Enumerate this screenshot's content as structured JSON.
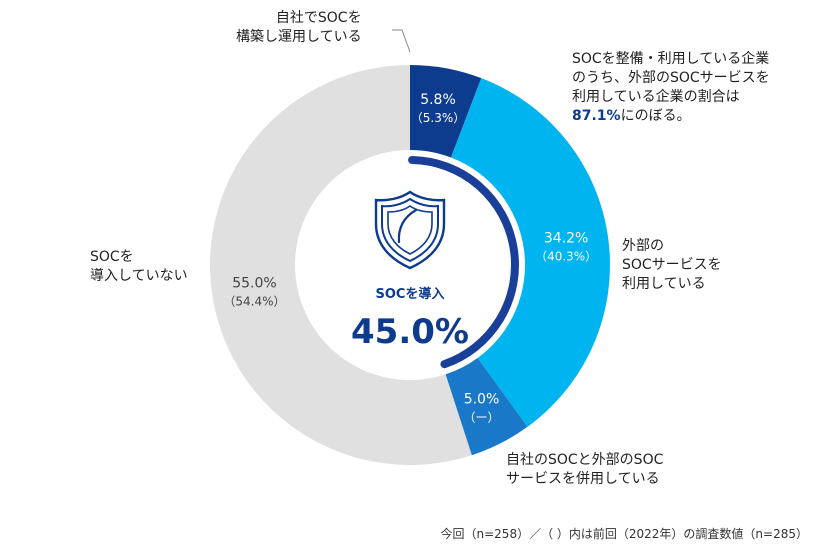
{
  "chart_data": {
    "type": "pie",
    "variant": "donut",
    "slices": [
      {
        "name_lines": [
          "自社でSOCを",
          "構築し運用している"
        ],
        "value": 5.8,
        "prev_label": "（5.3%）",
        "color": "#0d3b8e",
        "value_label": "5.8%"
      },
      {
        "name_lines": [
          "外部の",
          "SOCサービスを",
          "利用している"
        ],
        "value": 34.2,
        "prev_label": "（40.3%）",
        "color": "#00b4f0",
        "value_label": "34.2%"
      },
      {
        "name_lines": [
          "自社のSOCと外部のSOC",
          "サービスを併用している"
        ],
        "value": 5.0,
        "prev_label": "（ー）",
        "color": "#1a78c8",
        "value_label": "5.0%"
      },
      {
        "name_lines": [
          "SOCを",
          "導入していない"
        ],
        "value": 55.0,
        "prev_label": "（54.4%）",
        "color": "#e0e0e0",
        "value_label": "55.0%"
      }
    ],
    "center": {
      "label": "SOCを導入",
      "value": "45.0%"
    },
    "annotation": {
      "lines": [
        "SOCを整備・利用している企業",
        "のうち、外部のSOCサービスを",
        "利用している企業の割合は"
      ],
      "highlight": "87.1%",
      "suffix": "にのぼる。"
    },
    "footnote": "今回（n=258）／（ ）内は前回（2022年）の調査数値（n=285）"
  },
  "colors": {
    "dark_navy": "#0d3b8e",
    "ring_arc": "#1a3f99",
    "accent": "#0d3b8e"
  },
  "icons": {
    "center": "shield-icon"
  }
}
